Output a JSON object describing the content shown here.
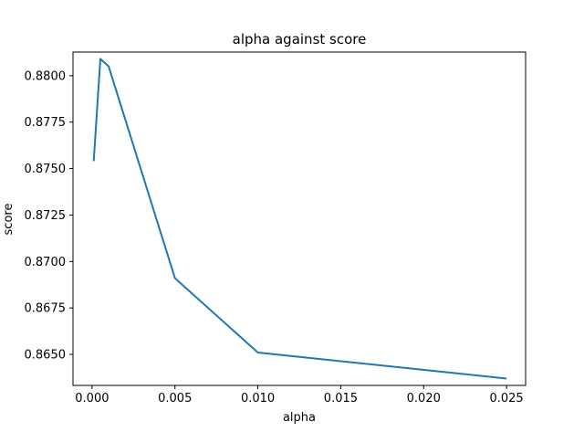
{
  "chart_data": {
    "type": "line",
    "title": "alpha against score",
    "xlabel": "alpha",
    "ylabel": "score",
    "xlim": [
      -0.00115,
      0.02615
    ],
    "ylim": [
      0.86333,
      0.88127
    ],
    "xticks": [
      0.0,
      0.005,
      0.01,
      0.015,
      0.02,
      0.025
    ],
    "xtick_labels": [
      "0.000",
      "0.005",
      "0.010",
      "0.015",
      "0.020",
      "0.025"
    ],
    "yticks": [
      0.865,
      0.8675,
      0.87,
      0.8725,
      0.875,
      0.8775,
      0.88
    ],
    "ytick_labels": [
      "0.8650",
      "0.8675",
      "0.8700",
      "0.8725",
      "0.8750",
      "0.8775",
      "0.8800"
    ],
    "grid": false,
    "series": [
      {
        "color": "#1f77b4",
        "x": [
          0.0001,
          0.0005,
          0.001,
          0.005,
          0.01,
          0.025
        ],
        "y": [
          0.8754,
          0.8809,
          0.8805,
          0.8691,
          0.8651,
          0.8637
        ]
      }
    ]
  }
}
